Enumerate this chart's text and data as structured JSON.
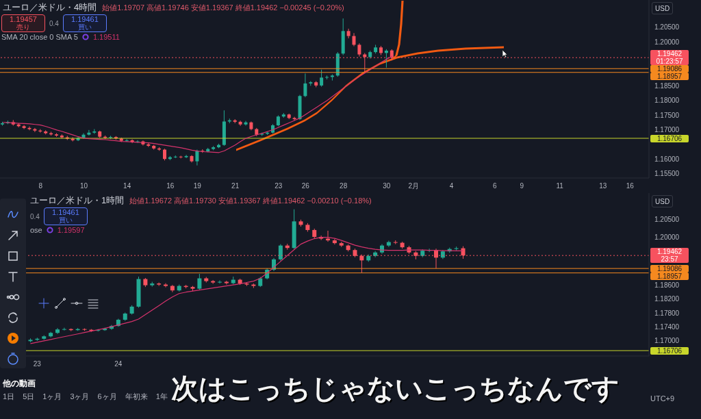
{
  "chart_data": [
    {
      "type": "candlestick",
      "title": "ユーロ／米ドル・4時間",
      "subtitle": "始値1.19707 高値1.19746 安値1.19367 終値1.19462 −0.00245 (−0.20%)",
      "categories": [
        null,
        null,
        null,
        null,
        null,
        null,
        null,
        "8",
        null,
        null,
        null,
        null,
        null,
        null,
        null,
        "10",
        null,
        null,
        null,
        null,
        null,
        null,
        null,
        "14",
        null,
        null,
        null,
        null,
        null,
        null,
        null,
        "16",
        null,
        null,
        null,
        null,
        "19",
        null,
        null,
        null,
        null,
        null,
        null,
        "21",
        null,
        null,
        null,
        null,
        null,
        null,
        null,
        "23",
        null,
        null,
        null,
        null,
        "26",
        null,
        null,
        null,
        null,
        null,
        null,
        "28",
        null,
        null,
        null,
        null,
        null,
        null,
        null,
        "30",
        null,
        null,
        null,
        null,
        "2月",
        null,
        null,
        null,
        null,
        null,
        null,
        "4",
        null,
        null,
        null,
        null,
        null,
        null,
        null,
        "6",
        null,
        null,
        null,
        null,
        "9",
        null,
        null,
        null,
        null,
        null,
        null,
        "11",
        null,
        null,
        null,
        null,
        null,
        null,
        null,
        "13",
        null,
        null,
        null,
        null,
        "16",
        null,
        null,
        null
      ],
      "colors": [
        "#22ab94",
        "#22ab94",
        "#f7525f",
        "#f7525f",
        "#f7525f",
        "#f7525f",
        "#f7525f",
        "#f7525f",
        "#f7525f",
        "#f7525f",
        "#f7525f",
        "#f7525f",
        "#f7525f",
        "#f7525f",
        "#22ab94",
        "#22ab94",
        "#22ab94",
        "#22ab94",
        "#f7525f",
        "#f7525f",
        "#22ab94",
        "#f7525f",
        "#f7525f",
        "#22ab94",
        "#f7525f",
        "#22ab94",
        "#f7525f",
        "#f7525f",
        "#f7525f",
        "#f7525f",
        "#f7525f",
        "#22ab94",
        "#22ab94",
        "#f7525f",
        "#22ab94",
        "#f7525f",
        "#22ab94",
        "#f7525f",
        "#22ab94",
        "#22ab94",
        "#22ab94",
        "#22ab94",
        "#22ab94",
        "#f7525f",
        "#f7525f",
        "#22ab94",
        "#f7525f",
        "#f7525f",
        "#22ab94",
        "#22ab94",
        "#22ab94",
        "#22ab94",
        "#22ab94",
        "#f7525f",
        "#f7525f",
        "#22ab94",
        "#22ab94",
        "#22ab94",
        "#f7525f",
        "#22ab94",
        "#22ab94",
        "#22ab94",
        "#22ab94",
        "#22ab94",
        "#f7525f",
        "#f7525f",
        "#f7525f",
        "#f7525f",
        "#22ab94",
        "#22ab94",
        "#f7525f",
        "#22ab94",
        "#f7525f",
        null,
        null,
        null,
        null,
        null,
        null,
        null,
        null,
        null,
        null,
        null,
        null,
        null,
        null,
        null,
        null,
        null,
        null,
        null,
        null,
        null,
        null,
        null,
        null,
        null,
        null,
        null,
        null,
        null,
        null,
        null,
        null,
        null,
        null,
        null,
        null,
        null,
        null,
        null,
        null,
        null,
        null,
        null,
        null,
        null,
        null,
        null
      ],
      "ohlc": [
        [
          1.1718,
          1.1727,
          1.1714,
          1.1722
        ],
        [
          1.1722,
          1.1731,
          1.1719,
          1.1726
        ],
        [
          1.1726,
          1.1733,
          1.1714,
          1.1718
        ],
        [
          1.1718,
          1.1722,
          1.1708,
          1.1712
        ],
        [
          1.1712,
          1.1716,
          1.1702,
          1.1706
        ],
        [
          1.1706,
          1.1711,
          1.1698,
          1.1702
        ],
        [
          1.1702,
          1.1706,
          1.1692,
          1.1697
        ],
        [
          1.1697,
          1.1702,
          1.169,
          1.1694
        ],
        [
          1.1694,
          1.1698,
          1.1684,
          1.1688
        ],
        [
          1.1688,
          1.1693,
          1.168,
          1.1684
        ],
        [
          1.1684,
          1.1688,
          1.1676,
          1.168
        ],
        [
          1.168,
          1.1684,
          1.167,
          1.1674
        ],
        [
          1.1674,
          1.1679,
          1.1665,
          1.1669
        ],
        [
          1.1669,
          1.1674,
          1.166,
          1.1664
        ],
        [
          1.1664,
          1.1676,
          1.1661,
          1.1672
        ],
        [
          1.1672,
          1.1688,
          1.1669,
          1.1683
        ],
        [
          1.1683,
          1.1699,
          1.168,
          1.169
        ],
        [
          1.169,
          1.1702,
          1.1686,
          1.1694
        ],
        [
          1.1694,
          1.1697,
          1.1672,
          1.1676
        ],
        [
          1.1676,
          1.168,
          1.1668,
          1.1672
        ],
        [
          1.1672,
          1.1679,
          1.1668,
          1.1675
        ],
        [
          1.1675,
          1.1678,
          1.1666,
          1.167
        ],
        [
          1.167,
          1.1673,
          1.1658,
          1.1662
        ],
        [
          1.1662,
          1.1668,
          1.1659,
          1.1664
        ],
        [
          1.1664,
          1.1667,
          1.1654,
          1.1658
        ],
        [
          1.1658,
          1.1664,
          1.1655,
          1.166
        ],
        [
          1.166,
          1.1663,
          1.1646,
          1.165
        ],
        [
          1.165,
          1.1654,
          1.1641,
          1.1645
        ],
        [
          1.1645,
          1.1648,
          1.1632,
          1.1636
        ],
        [
          1.1636,
          1.164,
          1.1628,
          1.1632
        ],
        [
          1.1632,
          1.1635,
          1.1595,
          1.16
        ],
        [
          1.16,
          1.161,
          1.1596,
          1.1606
        ],
        [
          1.1606,
          1.1612,
          1.1603,
          1.1608
        ],
        [
          1.1608,
          1.1611,
          1.1602,
          1.1606
        ],
        [
          1.1606,
          1.1614,
          1.1603,
          1.161
        ],
        [
          1.161,
          1.1613,
          1.1588,
          1.1592
        ],
        [
          1.1592,
          1.1632,
          1.1578,
          1.1628
        ],
        [
          1.1628,
          1.1633,
          1.1621,
          1.1626
        ],
        [
          1.1626,
          1.1638,
          1.1623,
          1.1634
        ],
        [
          1.1634,
          1.1644,
          1.163,
          1.164
        ],
        [
          1.164,
          1.1652,
          1.1637,
          1.1648
        ],
        [
          1.1648,
          1.1766,
          1.1645,
          1.1728
        ],
        [
          1.1728,
          1.1738,
          1.1722,
          1.1732
        ],
        [
          1.1732,
          1.1736,
          1.1722,
          1.1727
        ],
        [
          1.1727,
          1.1731,
          1.1713,
          1.1718
        ],
        [
          1.1718,
          1.173,
          1.1714,
          1.1725
        ],
        [
          1.1725,
          1.1728,
          1.1698,
          1.1702
        ],
        [
          1.1702,
          1.1706,
          1.1678,
          1.1683
        ],
        [
          1.1683,
          1.169,
          1.1679,
          1.1686
        ],
        [
          1.1686,
          1.1694,
          1.1682,
          1.169
        ],
        [
          1.169,
          1.1719,
          1.1687,
          1.1715
        ],
        [
          1.1715,
          1.1749,
          1.1712,
          1.1745
        ],
        [
          1.1745,
          1.1757,
          1.1741,
          1.1752
        ],
        [
          1.1752,
          1.1755,
          1.1736,
          1.174
        ],
        [
          1.174,
          1.1744,
          1.1731,
          1.1736
        ],
        [
          1.1736,
          1.1819,
          1.1733,
          1.1815
        ],
        [
          1.1815,
          1.1892,
          1.1811,
          1.1858
        ],
        [
          1.1858,
          1.1866,
          1.185,
          1.1862
        ],
        [
          1.1862,
          1.1866,
          1.1845,
          1.1851
        ],
        [
          1.1851,
          1.1905,
          1.1847,
          1.1878
        ],
        [
          1.1878,
          1.1885,
          1.1872,
          1.188
        ],
        [
          1.188,
          1.1889,
          1.1868,
          1.1885
        ],
        [
          1.1885,
          1.1965,
          1.1881,
          1.196
        ],
        [
          1.196,
          1.208,
          1.1955,
          1.2037
        ],
        [
          1.2037,
          1.2045,
          1.2012,
          1.202
        ],
        [
          1.202,
          1.203,
          1.1985,
          1.199
        ],
        [
          1.199,
          1.1995,
          1.195,
          1.1957
        ],
        [
          1.1957,
          1.1962,
          1.1896,
          1.1948
        ],
        [
          1.1948,
          1.197,
          1.1943,
          1.1965
        ],
        [
          1.1965,
          1.199,
          1.196,
          1.1981
        ],
        [
          1.1981,
          1.1986,
          1.1955,
          1.1962
        ],
        [
          1.1962,
          1.1975,
          1.1912,
          1.197
        ],
        [
          1.19707,
          1.19746,
          1.19367,
          1.19462
        ],
        null,
        null,
        null,
        null,
        null,
        null,
        null,
        null,
        null,
        null,
        null,
        null,
        null,
        null,
        null,
        null,
        null,
        null,
        null,
        null,
        null,
        null,
        null,
        null,
        null,
        null,
        null,
        null,
        null,
        null,
        null,
        null,
        null,
        null,
        null,
        null,
        null,
        null,
        null,
        null,
        null,
        null,
        null,
        null,
        null,
        null,
        null
      ],
      "series": [
        {
          "type": "line",
          "color": "#d6336c",
          "values": [
            1.1725,
            1.1724,
            1.1723,
            1.1722,
            1.1721,
            1.172,
            1.1718,
            1.1716,
            1.1711,
            1.1705,
            1.1699,
            1.1694,
            1.1688,
            1.1682,
            1.1676,
            1.1671,
            1.1669,
            1.1668,
            1.1667,
            1.1666,
            1.1664,
            1.1662,
            1.166,
            1.1659,
            1.1658,
            1.1657,
            1.1656,
            1.1655,
            1.1653,
            1.165,
            1.1647,
            1.1644,
            1.1641,
            1.1638,
            1.1634,
            1.163,
            1.1627,
            1.1625,
            1.1624,
            1.1623,
            1.1622,
            1.1628,
            1.1638,
            1.1648,
            1.166,
            1.1671,
            1.1677,
            1.1683,
            1.1688,
            1.1694,
            1.17,
            1.1708,
            1.1716,
            1.1724,
            1.1732,
            1.174,
            1.1752,
            1.1764,
            1.1776,
            1.1788,
            1.18,
            1.1814,
            1.1828,
            1.1842,
            1.1856,
            1.187,
            1.1882,
            1.1894,
            1.1906,
            1.1918,
            1.193,
            1.1941,
            1.19511,
            null,
            null,
            null,
            null,
            null,
            null,
            null,
            null,
            null,
            null,
            null,
            null,
            null,
            null,
            null,
            null,
            null,
            null,
            null,
            null,
            null,
            null,
            null,
            null,
            null,
            null,
            null,
            null,
            null,
            null,
            null,
            null,
            null,
            null,
            null,
            null,
            null,
            null,
            null,
            null,
            null,
            null,
            null,
            null,
            null,
            null,
            null
          ]
        }
      ],
      "ylim": [
        1.1535,
        1.2143
      ],
      "yticks": [
        {
          "value": 1.155,
          "label": "1.15500"
        },
        {
          "value": 1.16,
          "label": "1.16000"
        },
        {
          "value": 1.17,
          "label": "1.17000"
        },
        {
          "value": 1.175,
          "label": "1.17500"
        },
        {
          "value": 1.18,
          "label": "1.18000"
        },
        {
          "value": 1.185,
          "label": "1.18500"
        },
        {
          "value": 1.2,
          "label": "1.20000"
        },
        {
          "value": 1.205,
          "label": "1.20500"
        }
      ],
      "ref_lines": [
        {
          "axis": "y",
          "value": 1.19462,
          "label": "1.19462",
          "color": "#f7525f",
          "line_style": "dotted"
        },
        {
          "axis": "y",
          "value": 1.19086,
          "label": "1.19086",
          "color": "#f5891f",
          "line_style": "solid"
        },
        {
          "axis": "y",
          "value": 1.18957,
          "label": "1.18957",
          "color": "#f5891f",
          "line_style": "solid"
        },
        {
          "axis": "y",
          "value": 1.16706,
          "label": "1.16706",
          "color": "#c8d62b",
          "line_style": "solid"
        }
      ],
      "annotations": [
        "1.19457",
        "売り",
        "0.4",
        "1.19461",
        "買い",
        "SMA 20 close 0 SMA 5",
        "1.19511",
        "USD",
        "01:23:57"
      ]
    },
    {
      "type": "candlestick",
      "title": "ユーロ／米ドル・1時間",
      "subtitle": "始値1.19672 高値1.19730 安値1.19367 終値1.19462 −0.00210 (−0.18%)",
      "categories": [
        null,
        null,
        null,
        null,
        null,
        "23",
        null,
        null,
        null,
        null,
        null,
        null,
        null,
        null,
        null,
        null,
        null,
        "24",
        null,
        null,
        null,
        null,
        null,
        null,
        null,
        null,
        null,
        null,
        null,
        null,
        null,
        null,
        null,
        null,
        null,
        null,
        null,
        null,
        null,
        null,
        null,
        null,
        null,
        null,
        null,
        null,
        null,
        null,
        null,
        null,
        null,
        null,
        null,
        null,
        null,
        null,
        null,
        null,
        null,
        null,
        null,
        null,
        null,
        null,
        null,
        null,
        null,
        null,
        null,
        null,
        null,
        null,
        null,
        null,
        null,
        null,
        null,
        null,
        null,
        null,
        null,
        null,
        null,
        null,
        null,
        null,
        null,
        null,
        null,
        null,
        null,
        null,
        null,
        null,
        null,
        null
      ],
      "colors": [
        null,
        null,
        null,
        null,
        "#22ab94",
        "#22ab94",
        "#22ab94",
        "#22ab94",
        "#22ab94",
        "#22ab94",
        "#f7525f",
        "#22ab94",
        "#f7525f",
        "#f7525f",
        "#22ab94",
        "#22ab94",
        "#22ab94",
        "#22ab94",
        "#22ab94",
        "#22ab94",
        "#22ab94",
        "#f7525f",
        "#22ab94",
        "#f7525f",
        "#f7525f",
        "#f7525f",
        "#22ab94",
        "#f7525f",
        "#f7525f",
        "#22ab94",
        "#f7525f",
        "#f7525f",
        "#22ab94",
        "#f7525f",
        "#22ab94",
        "#f7525f",
        "#f7525f",
        "#f7525f",
        "#22ab94",
        "#22ab94",
        "#22ab94",
        "#22ab94",
        "#f7525f",
        "#22ab94",
        "#f7525f",
        "#f7525f",
        "#f7525f",
        "#f7525f",
        "#f7525f",
        "#f7525f",
        "#f7525f",
        "#f7525f",
        "#f7525f",
        "#f7525f",
        "#22ab94",
        "#22ab94",
        "#22ab94",
        "#22ab94",
        "#f7525f",
        "#f7525f",
        "#f7525f",
        "#f7525f",
        "#22ab94",
        "#22ab94",
        "#f7525f",
        "#22ab94",
        "#22ab94",
        "#22ab94",
        "#f7525f",
        null,
        null,
        null,
        null,
        null,
        null,
        null,
        null,
        null,
        null,
        null,
        null,
        null,
        null,
        null,
        null,
        null,
        null,
        null,
        null,
        null,
        null,
        null,
        null,
        null,
        null,
        null
      ],
      "ohlc": [
        null,
        null,
        null,
        null,
        [
          1.1698,
          1.1706,
          1.1695,
          1.1702
        ],
        [
          1.1702,
          1.1708,
          1.1699,
          1.1705
        ],
        [
          1.1705,
          1.1715,
          1.1702,
          1.1712
        ],
        [
          1.1712,
          1.1725,
          1.1709,
          1.1722
        ],
        [
          1.1722,
          1.1736,
          1.1719,
          1.1732
        ],
        [
          1.1732,
          1.1737,
          1.1729,
          1.1733
        ],
        [
          1.1733,
          1.1735,
          1.1727,
          1.173
        ],
        [
          1.173,
          1.1736,
          1.1728,
          1.1733
        ],
        [
          1.1733,
          1.1735,
          1.1728,
          1.1731
        ],
        [
          1.1731,
          1.1733,
          1.1725,
          1.1728
        ],
        [
          1.1728,
          1.1733,
          1.1726,
          1.173
        ],
        [
          1.173,
          1.1737,
          1.1728,
          1.1734
        ],
        [
          1.1734,
          1.1745,
          1.1731,
          1.1742
        ],
        [
          1.1742,
          1.1763,
          1.174,
          1.176
        ],
        [
          1.176,
          1.1781,
          1.1757,
          1.1778
        ],
        [
          1.1778,
          1.1802,
          1.1775,
          1.1798
        ],
        [
          1.1798,
          1.1885,
          1.1795,
          1.1878
        ],
        [
          1.1878,
          1.1881,
          1.1855,
          1.186
        ],
        [
          1.186,
          1.187,
          1.1856,
          1.1865
        ],
        [
          1.1865,
          1.1868,
          1.1858,
          1.1862
        ],
        [
          1.1862,
          1.1866,
          1.1854,
          1.1858
        ],
        [
          1.1858,
          1.1861,
          1.184,
          1.1845
        ],
        [
          1.1845,
          1.1862,
          1.1842,
          1.1858
        ],
        [
          1.1858,
          1.1861,
          1.1851,
          1.1855
        ],
        [
          1.1855,
          1.1858,
          1.1843,
          1.185
        ],
        [
          1.185,
          1.1893,
          1.1847,
          1.188
        ],
        [
          1.188,
          1.1884,
          1.1868,
          1.1872
        ],
        [
          1.1872,
          1.1875,
          1.1864,
          1.1868
        ],
        [
          1.1868,
          1.1874,
          1.1865,
          1.187
        ],
        [
          1.187,
          1.1873,
          1.1862,
          1.1866
        ],
        [
          1.1866,
          1.1885,
          1.1863,
          1.1876
        ],
        [
          1.1876,
          1.1879,
          1.1861,
          1.1865
        ],
        [
          1.1865,
          1.1868,
          1.1858,
          1.1862
        ],
        [
          1.1862,
          1.1865,
          1.1852,
          1.1858
        ],
        [
          1.1858,
          1.1884,
          1.1855,
          1.188
        ],
        [
          1.188,
          1.1909,
          1.1877,
          1.1905
        ],
        [
          1.1905,
          1.1939,
          1.1901,
          1.1935
        ],
        [
          1.1935,
          1.1979,
          1.1931,
          1.1975
        ],
        [
          1.1975,
          1.198,
          1.1963,
          1.1968
        ],
        [
          1.1968,
          1.208,
          1.1965,
          1.2045
        ],
        [
          1.2045,
          1.205,
          1.203,
          1.2035
        ],
        [
          1.2035,
          1.204,
          1.2015,
          1.202
        ],
        [
          1.202,
          1.2024,
          1.1996,
          1.2
        ],
        [
          1.2,
          1.2004,
          1.1991,
          1.1995
        ],
        [
          1.1995,
          1.2018,
          1.1986,
          1.199
        ],
        [
          1.199,
          1.1994,
          1.1978,
          1.1982
        ],
        [
          1.1982,
          1.1986,
          1.1971,
          1.1975
        ],
        [
          1.1975,
          1.1978,
          1.1958,
          1.1962
        ],
        [
          1.1962,
          1.1966,
          1.1941,
          1.1945
        ],
        [
          1.1945,
          1.1949,
          1.1896,
          1.1932
        ],
        [
          1.1932,
          1.1949,
          1.1928,
          1.1945
        ],
        [
          1.1945,
          1.1959,
          1.1941,
          1.1955
        ],
        [
          1.1955,
          1.1979,
          1.1951,
          1.1975
        ],
        [
          1.1975,
          1.1989,
          1.1971,
          1.1985
        ],
        [
          1.1985,
          1.199,
          1.1979,
          1.1983
        ],
        [
          1.1983,
          1.1986,
          1.1966,
          1.197
        ],
        [
          1.197,
          1.1974,
          1.1951,
          1.1955
        ],
        [
          1.1955,
          1.1959,
          1.1935,
          1.1945
        ],
        [
          1.1945,
          1.1964,
          1.1941,
          1.196
        ],
        [
          1.196,
          1.1966,
          1.1956,
          1.1962
        ],
        [
          1.1962,
          1.1966,
          1.1909,
          1.194
        ],
        [
          1.194,
          1.1962,
          1.1936,
          1.1958
        ],
        [
          1.1958,
          1.1969,
          1.1954,
          1.1965
        ],
        [
          1.1965,
          1.1972,
          1.1961,
          1.19672
        ],
        [
          1.19672,
          1.1973,
          1.19367,
          1.19462
        ],
        null,
        null,
        null,
        null,
        null,
        null,
        null,
        null,
        null,
        null,
        null,
        null,
        null,
        null,
        null,
        null,
        null,
        null,
        null,
        null,
        null,
        null,
        null,
        null,
        null,
        null,
        null
      ],
      "series": [
        {
          "type": "line",
          "color": "#d6336c",
          "values": [
            null,
            null,
            null,
            null,
            1.1691,
            1.1695,
            1.1699,
            1.1703,
            1.1707,
            1.1711,
            1.1715,
            1.1719,
            1.1723,
            1.1727,
            1.1731,
            1.1735,
            1.174,
            1.1745,
            1.175,
            1.1755,
            1.1762,
            1.1775,
            1.1788,
            1.1801,
            1.1814,
            1.1826,
            1.1836,
            1.184,
            1.1843,
            1.1846,
            1.1849,
            1.1852,
            1.1855,
            1.1858,
            1.1861,
            1.1864,
            1.1868,
            1.1872,
            1.188,
            1.1895,
            1.1912,
            1.1929,
            1.1946,
            1.1963,
            1.1979,
            1.1988,
            1.1995,
            1.1999,
            1.1999,
            1.1996,
            1.199,
            1.1983,
            1.1976,
            1.1971,
            1.1967,
            1.1964,
            1.1962,
            1.1961,
            1.1961,
            1.1961,
            1.1962,
            1.1962,
            1.1962,
            1.1961,
            1.1961,
            1.196,
            1.196,
            1.19598,
            1.19597,
            null,
            null,
            null,
            null,
            null,
            null,
            null,
            null,
            null,
            null,
            null,
            null,
            null,
            null,
            null,
            null,
            null,
            null,
            null,
            null,
            null,
            null,
            null,
            null,
            null,
            null,
            null
          ]
        }
      ],
      "ylim": [
        1.1655,
        1.2127
      ],
      "yticks": [
        {
          "value": 1.17,
          "label": "1.17000"
        },
        {
          "value": 1.174,
          "label": "1.17400"
        },
        {
          "value": 1.178,
          "label": "1.17800"
        },
        {
          "value": 1.182,
          "label": "1.18200"
        },
        {
          "value": 1.186,
          "label": "1.18600"
        },
        {
          "value": 1.2,
          "label": "1.20000"
        },
        {
          "value": 1.205,
          "label": "1.20500"
        }
      ],
      "ref_lines": [
        {
          "axis": "y",
          "value": 1.19462,
          "label": "1.19462",
          "color": "#f7525f",
          "line_style": "dotted"
        },
        {
          "axis": "y",
          "value": 1.19086,
          "label": "1.19086",
          "color": "#f5891f",
          "line_style": "solid"
        },
        {
          "axis": "y",
          "value": 1.18957,
          "label": "1.18957",
          "color": "#f5891f",
          "line_style": "solid"
        },
        {
          "axis": "y",
          "value": 1.16706,
          "label": "1.16706",
          "color": "#c8d62b",
          "line_style": "solid"
        }
      ],
      "annotations": [
        "1.19461",
        "買い",
        "0.4",
        "ose",
        "1.19597",
        "USD",
        "1日",
        "5日",
        "1ヶ月",
        "3ヶ月",
        "6ヶ月",
        "年初来",
        "1年",
        "UTC+9",
        "他の動画",
        "次はこっちじゃないこっちなんです",
        "23:57"
      ]
    }
  ]
}
